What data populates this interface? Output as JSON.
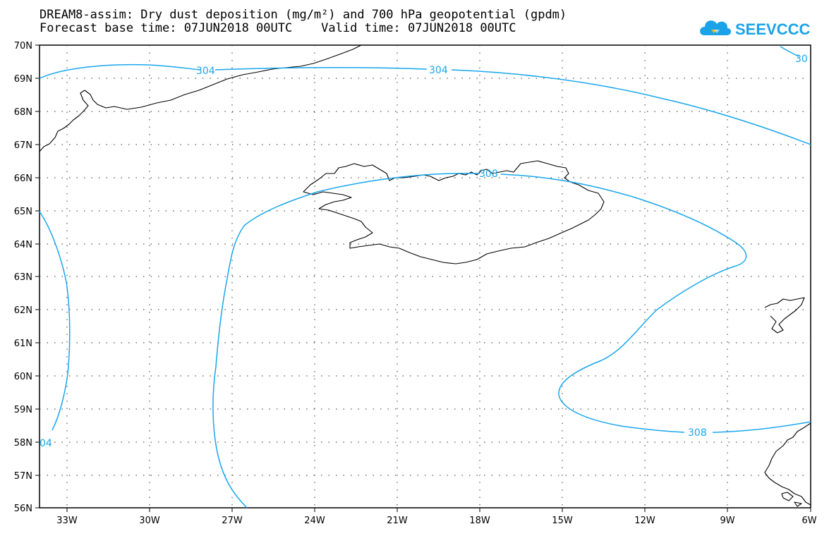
{
  "title": {
    "line1": "DREAM8-assim: Dry dust deposition (mg/m²) and 700 hPa geopotential (gpdm)",
    "line2": "Forecast base time: 07JUN2018 00UTC    Valid time: 07JUN2018 00UTC"
  },
  "logo": {
    "text": "SEEVCCC",
    "icon": "cloud-logo-icon",
    "color": "#1aa3e8"
  },
  "map": {
    "lat_labels": [
      "70N",
      "69N",
      "68N",
      "67N",
      "66N",
      "65N",
      "64N",
      "63N",
      "62N",
      "61N",
      "60N",
      "59N",
      "58N",
      "57N",
      "56N"
    ],
    "lon_labels": [
      "33W",
      "30W",
      "27W",
      "24W",
      "21W",
      "18W",
      "15W",
      "12W",
      "9W",
      "6W"
    ],
    "contour_color": "#18a6ee",
    "contour_labels": [
      "304",
      "304",
      "308",
      "308",
      "30",
      "04"
    ]
  }
}
